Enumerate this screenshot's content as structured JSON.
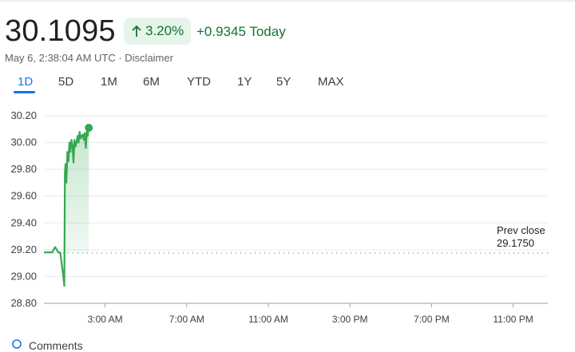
{
  "quote": {
    "price": "30.1095",
    "change_pct": "3.20%",
    "change_abs": "+0.9345 Today",
    "timestamp": "May 6, 2:38:04 AM UTC · Disclaimer"
  },
  "colors": {
    "up": "#137333",
    "up_bg": "#e6f4ea",
    "line": "#34a853",
    "accent": "#1a73e8"
  },
  "range_tabs": [
    {
      "label": "1D",
      "active": true
    },
    {
      "label": "5D",
      "active": false
    },
    {
      "label": "1M",
      "active": false
    },
    {
      "label": "6M",
      "active": false
    },
    {
      "label": "YTD",
      "active": false
    },
    {
      "label": "1Y",
      "active": false
    },
    {
      "label": "5Y",
      "active": false
    },
    {
      "label": "MAX",
      "active": false
    }
  ],
  "chart_data": {
    "type": "line",
    "y_ticks": [
      "30.20",
      "30.00",
      "29.80",
      "29.60",
      "29.40",
      "29.20",
      "29.00",
      "28.80"
    ],
    "x_ticks": [
      "3:00 AM",
      "7:00 AM",
      "11:00 AM",
      "3:00 PM",
      "7:00 PM",
      "11:00 PM"
    ],
    "ylim": [
      28.8,
      30.2
    ],
    "prev_close_label": "Prev close",
    "prev_close_value": "29.1750",
    "prev_close": 29.175,
    "grid": true,
    "series": [
      {
        "values": [
          [
            0.0,
            29.18
          ],
          [
            0.4,
            29.18
          ],
          [
            0.55,
            29.22
          ],
          [
            0.7,
            29.18
          ],
          [
            0.8,
            29.18
          ],
          [
            0.95,
            29.0
          ],
          [
            1.0,
            28.93
          ],
          [
            1.03,
            29.78
          ],
          [
            1.06,
            29.84
          ],
          [
            1.1,
            29.7
          ],
          [
            1.15,
            29.93
          ],
          [
            1.2,
            29.86
          ],
          [
            1.25,
            30.0
          ],
          [
            1.3,
            29.93
          ],
          [
            1.35,
            30.02
          ],
          [
            1.4,
            29.98
          ],
          [
            1.45,
            29.85
          ],
          [
            1.5,
            30.02
          ],
          [
            1.55,
            29.97
          ],
          [
            1.6,
            30.0
          ],
          [
            1.65,
            30.05
          ],
          [
            1.7,
            30.0
          ],
          [
            1.75,
            30.08
          ],
          [
            1.8,
            30.03
          ],
          [
            1.85,
            30.05
          ],
          [
            1.9,
            30.06
          ],
          [
            1.95,
            30.02
          ],
          [
            2.0,
            30.07
          ],
          [
            2.05,
            29.96
          ],
          [
            2.1,
            30.08
          ],
          [
            2.15,
            30.05
          ],
          [
            2.2,
            30.11
          ]
        ]
      }
    ]
  },
  "footer": {
    "comments_label": "Comments"
  }
}
